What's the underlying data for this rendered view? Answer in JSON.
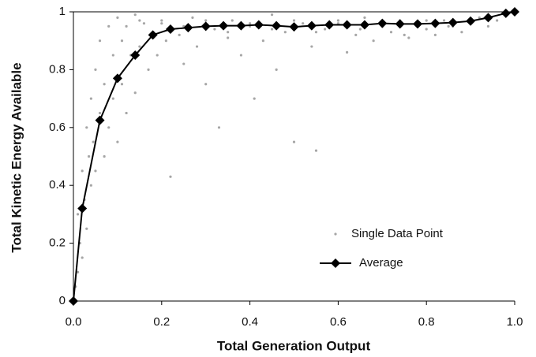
{
  "chart_data": {
    "type": "scatter",
    "xlabel": "Total Generation Output",
    "ylabel": "Total Kinetic Energy Available",
    "xlim": [
      0,
      1
    ],
    "ylim": [
      0,
      1
    ],
    "xticks": [
      {
        "value": 0,
        "label": "0.0"
      },
      0.2,
      0.4,
      0.6,
      0.8,
      {
        "value": 1,
        "label": "1.0"
      }
    ],
    "yticks": [
      0,
      0.2,
      0.4,
      0.6,
      0.8,
      1
    ],
    "grid": false,
    "legend": "lower right",
    "series": [
      {
        "name": "Single Data Point",
        "color": "#a6a6a6",
        "marker": "dot",
        "line": false,
        "x": [
          0.005,
          0.01,
          0.01,
          0.015,
          0.02,
          0.02,
          0.025,
          0.03,
          0.03,
          0.035,
          0.04,
          0.04,
          0.045,
          0.05,
          0.05,
          0.06,
          0.06,
          0.07,
          0.07,
          0.08,
          0.08,
          0.09,
          0.09,
          0.1,
          0.1,
          0.11,
          0.11,
          0.12,
          0.12,
          0.13,
          0.14,
          0.14,
          0.15,
          0.16,
          0.17,
          0.18,
          0.19,
          0.2,
          0.21,
          0.22,
          0.24,
          0.25,
          0.27,
          0.28,
          0.3,
          0.32,
          0.33,
          0.35,
          0.36,
          0.38,
          0.4,
          0.41,
          0.43,
          0.45,
          0.46,
          0.48,
          0.5,
          0.52,
          0.54,
          0.55,
          0.57,
          0.6,
          0.62,
          0.64,
          0.66,
          0.68,
          0.7,
          0.72,
          0.74,
          0.76,
          0.78,
          0.8,
          0.82,
          0.84,
          0.86,
          0.88,
          0.9,
          0.92,
          0.94,
          0.96,
          0.98,
          0.15,
          0.2,
          0.25,
          0.3,
          0.35,
          0.4,
          0.45,
          0.5,
          0.55,
          0.6,
          0.65,
          0.7,
          0.75,
          0.8,
          0.85,
          0.9
        ],
        "values": [
          0.05,
          0.1,
          0.3,
          0.2,
          0.45,
          0.15,
          0.35,
          0.6,
          0.25,
          0.5,
          0.7,
          0.4,
          0.55,
          0.8,
          0.45,
          0.9,
          0.65,
          0.75,
          0.5,
          0.95,
          0.6,
          0.85,
          0.7,
          0.98,
          0.55,
          0.9,
          0.75,
          0.95,
          0.65,
          0.85,
          0.99,
          0.72,
          0.88,
          0.96,
          0.8,
          0.93,
          0.85,
          0.97,
          0.9,
          0.43,
          0.92,
          0.82,
          0.98,
          0.88,
          0.75,
          0.94,
          0.6,
          0.91,
          0.97,
          0.85,
          0.95,
          0.7,
          0.9,
          0.99,
          0.8,
          0.93,
          0.55,
          0.96,
          0.88,
          0.52,
          0.94,
          0.97,
          0.86,
          0.92,
          0.98,
          0.9,
          0.95,
          0.93,
          0.97,
          0.91,
          0.96,
          0.94,
          0.92,
          0.97,
          0.95,
          0.93,
          0.96,
          0.98,
          0.95,
          0.97,
          0.99,
          0.97,
          0.96,
          0.95,
          0.97,
          0.93,
          0.96,
          0.94,
          0.97,
          0.93,
          0.96,
          0.94,
          0.95,
          0.92,
          0.97,
          0.95,
          0.96
        ]
      },
      {
        "name": "Average",
        "color": "#000000",
        "marker": "diamond",
        "line": true,
        "x": [
          0,
          0.02,
          0.06,
          0.1,
          0.14,
          0.18,
          0.22,
          0.26,
          0.3,
          0.34,
          0.38,
          0.42,
          0.46,
          0.5,
          0.54,
          0.58,
          0.62,
          0.66,
          0.7,
          0.74,
          0.78,
          0.82,
          0.86,
          0.9,
          0.94,
          0.98,
          1
        ],
        "values": [
          0,
          0.32,
          0.625,
          0.77,
          0.85,
          0.92,
          0.94,
          0.945,
          0.95,
          0.952,
          0.952,
          0.955,
          0.952,
          0.948,
          0.952,
          0.955,
          0.955,
          0.955,
          0.96,
          0.958,
          0.958,
          0.96,
          0.963,
          0.968,
          0.98,
          0.995,
          1
        ]
      }
    ]
  }
}
